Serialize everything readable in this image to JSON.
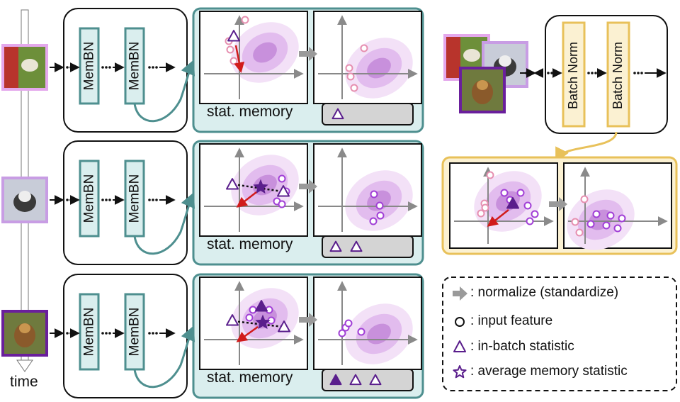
{
  "time_axis": {
    "label": "time"
  },
  "memory_rows": [
    {
      "memory_label": "stat. memory",
      "block_labels": [
        "MemBN",
        "MemBN"
      ]
    },
    {
      "memory_label": "stat. memory",
      "block_labels": [
        "MemBN",
        "MemBN"
      ]
    },
    {
      "memory_label": "stat. memory",
      "block_labels": [
        "MemBN",
        "MemBN"
      ]
    }
  ],
  "batchnorm": {
    "block_labels": [
      "Batch Norm",
      "Batch Norm"
    ]
  },
  "legend": [
    {
      "icon": "gray-arrow-icon",
      "text": ": normalize (standardize)"
    },
    {
      "icon": "circle-icon",
      "text": ": input feature"
    },
    {
      "icon": "triangle-icon",
      "text": ": in-batch statistic"
    },
    {
      "icon": "star-icon",
      "text": ": average memory statistic"
    }
  ],
  "colors": {
    "teal": "#4e8f8f",
    "teal_fill": "#daeeee",
    "gold": "#e8c15a",
    "gold_fill": "#fbf1d2",
    "purple": "#5a1e8c",
    "red_arrow": "#d11b1b",
    "circle_pink": "#e68fb0",
    "circle_purple": "#a13fd6"
  }
}
